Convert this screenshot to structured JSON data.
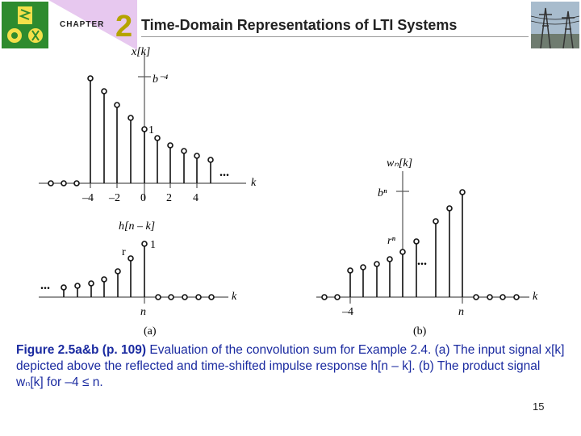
{
  "header": {
    "chapter_label": "CHAPTER",
    "chapter_number": "2",
    "title": "Time-Domain Representations of LTI Systems",
    "logo_icon": "university-logo-icon",
    "photo_icon": "power-lines-photo-icon"
  },
  "figure": {
    "panel_a_top": {
      "ylabel": "x[k]",
      "xlabel": "k",
      "top_label": "b⁻⁴",
      "one_label": "1",
      "ellipsis": "...",
      "tick_labels": [
        "–4",
        "–2",
        "0",
        "2",
        "4"
      ]
    },
    "panel_a_bottom": {
      "ylabel": "h[n – k]",
      "xlabel": "k",
      "n_label": "n",
      "r_label": "r",
      "one_label": "1",
      "ellipsis": "..."
    },
    "panel_b": {
      "ylabel": "wₙ[k]",
      "xlabel": "k",
      "bn_label": "bⁿ",
      "rn_label": "rⁿ",
      "ellipsis": "...",
      "tick_minus4": "–4",
      "tick_n": "n"
    },
    "label_a": "(a)",
    "label_b": "(b)"
  },
  "caption": {
    "bold": "Figure 2.5a&b  (p. 109)",
    "text": " Evaluation of the convolution sum for Example 2.4. (a) The input signal x[k] depicted above the reflected and time-shifted impulse response h[n – k]. (b) The product signal wₙ[k] for –4 ≤ n."
  },
  "page_number": "15"
}
